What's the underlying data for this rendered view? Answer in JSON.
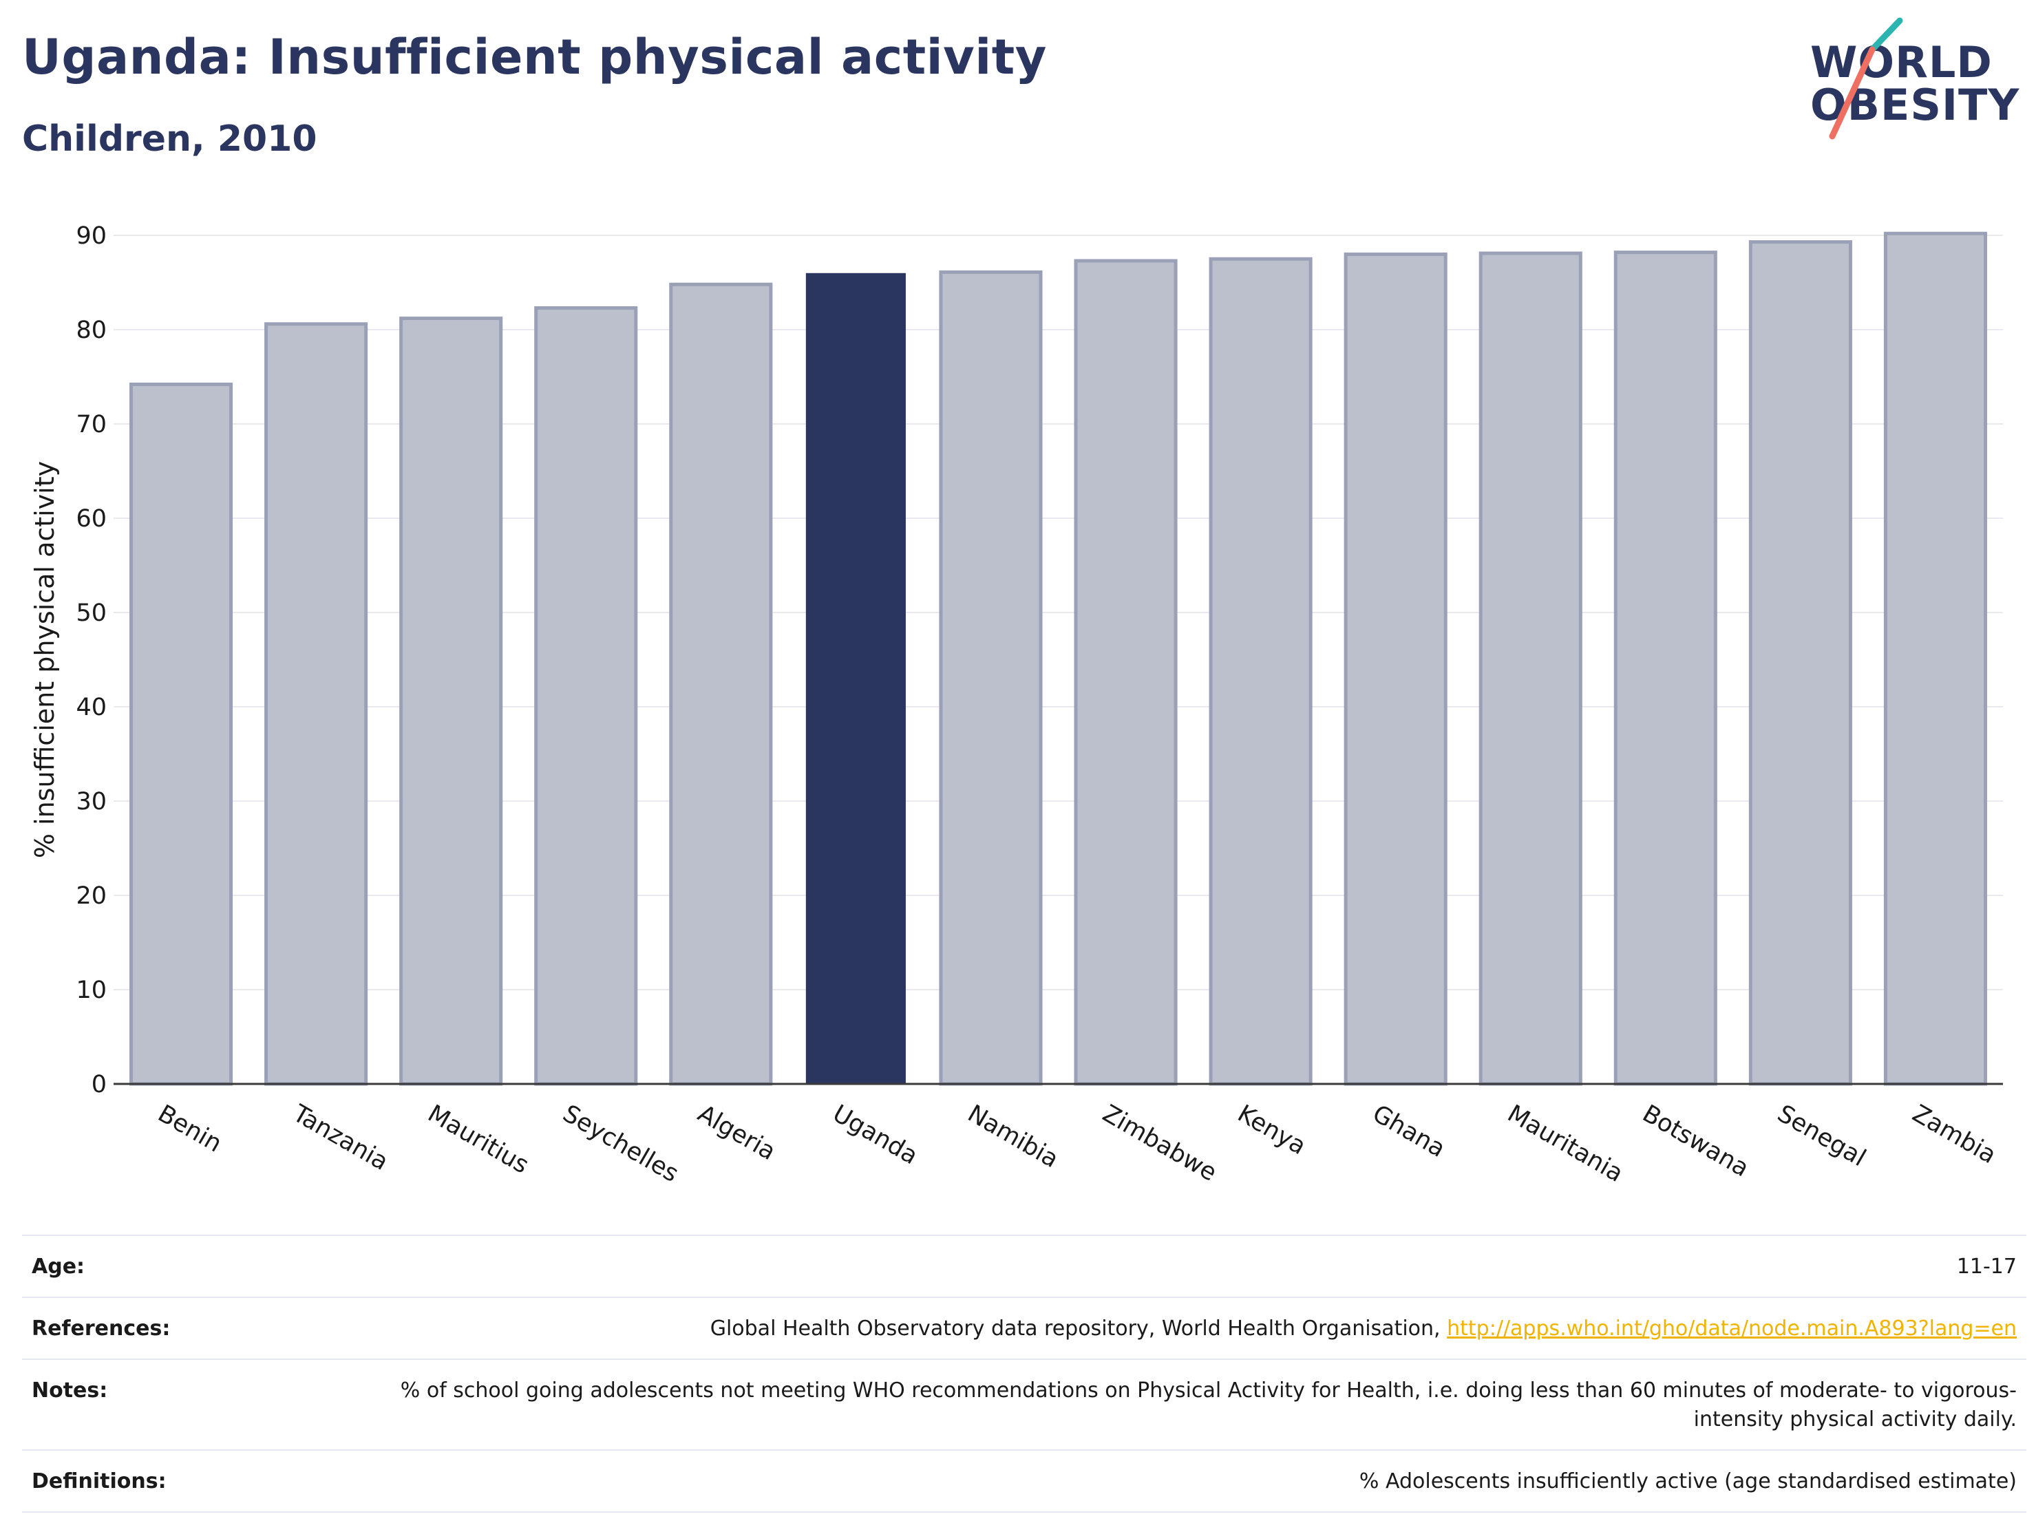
{
  "header": {
    "title": "Uganda: Insufficient physical activity",
    "subtitle": "Children, 2010"
  },
  "logo": {
    "line1": "WORLD",
    "line2": "OBESITY",
    "colors": {
      "text": "#2a3560",
      "slash_top": "#2bb5b0",
      "slash_bottom": "#ef6f62"
    }
  },
  "chart_data": {
    "type": "bar",
    "categories": [
      "Benin",
      "Tanzania",
      "Mauritius",
      "Seychelles",
      "Algeria",
      "Uganda",
      "Namibia",
      "Zimbabwe",
      "Kenya",
      "Ghana",
      "Mauritania",
      "Botswana",
      "Senegal",
      "Zambia"
    ],
    "values": [
      74.2,
      80.6,
      81.2,
      82.3,
      84.8,
      86.0,
      86.1,
      87.3,
      87.5,
      88.0,
      88.1,
      88.2,
      89.3,
      90.2
    ],
    "highlight": "Uganda",
    "title": "Uganda: Insufficient physical activity",
    "subtitle": "Children, 2010",
    "xlabel": "",
    "ylabel": "% insufficient physical activity",
    "ylim": [
      0,
      90
    ],
    "yticks": [
      0,
      10,
      20,
      30,
      40,
      50,
      60,
      70,
      80,
      90
    ],
    "grid": true,
    "colors": {
      "bar": "#bcc0cd",
      "bar_edge": "#9aa0b6",
      "highlight": "#2a3560"
    }
  },
  "info": {
    "age": {
      "label": "Age:",
      "value": "11-17"
    },
    "references": {
      "label": "References:",
      "value": "Global Health Observatory data repository, World Health Organisation,",
      "link": "http://apps.who.int/gho/data/node.main.A893?lang=en"
    },
    "notes": {
      "label": "Notes:",
      "value": "% of school going adolescents not meeting WHO recommendations on Physical Activity for Health, i.e. doing less than 60 minutes of moderate- to vigorous-intensity physical activity daily."
    },
    "definitions": {
      "label": "Definitions:",
      "value": "% Adolescents insufficiently active (age standardised estimate)"
    }
  }
}
